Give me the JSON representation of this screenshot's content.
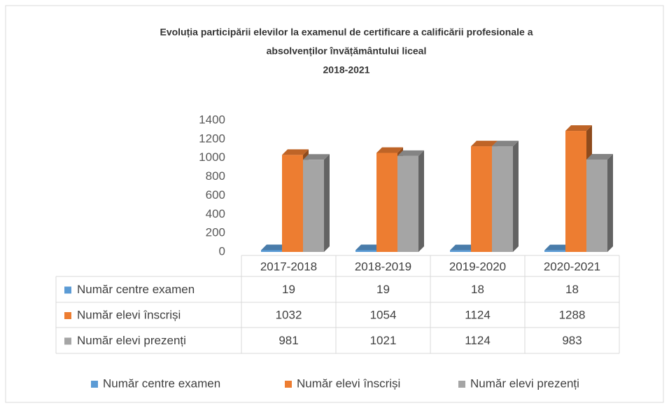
{
  "chart_data": {
    "type": "bar3d",
    "title": [
      "Evoluția participării elevilor la examenul de certificare a calificării profesionale a",
      "absolvenților învățământului liceal",
      "2018-2021"
    ],
    "categories": [
      "2017-2018",
      "2018-2019",
      "2019-2020",
      "2020-2021"
    ],
    "series": [
      {
        "name": "Număr centre examen",
        "color": "#5b9bd5",
        "values": [
          19,
          19,
          18,
          18
        ]
      },
      {
        "name": "Număr elevi înscriși",
        "color": "#ed7d31",
        "values": [
          1032,
          1054,
          1124,
          1288
        ]
      },
      {
        "name": "Număr elevi prezenți",
        "color": "#a5a5a5",
        "values": [
          981,
          1021,
          1124,
          983
        ]
      }
    ],
    "ylim": [
      0,
      1400
    ],
    "yticks": [
      0,
      200,
      400,
      600,
      800,
      1000,
      1200,
      1400
    ],
    "grid": false,
    "data_table": true,
    "legend": "bottom"
  }
}
